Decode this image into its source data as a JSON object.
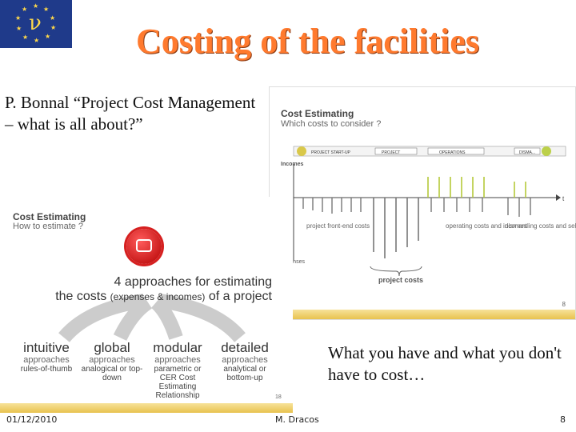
{
  "logo": {
    "letter": "ν"
  },
  "title": "Costing of the facilities",
  "citation": "P. Bonnal “Project Cost Management – what is all about?”",
  "slide_right": {
    "heading": "Cost Estimating",
    "subheading": "Which costs to consider ?",
    "phases": [
      "PROJECT START-UP",
      "PROJECT",
      "OPERATIONS",
      "DISMA..."
    ],
    "incomes_label": "Incomes",
    "expenses_label": "expenses",
    "front_end_label": "project front-end costs",
    "operating_label": "operating costs and incomes",
    "dismantling_label": "dismantling costs and selling-out",
    "project_costs_label": "project costs",
    "axis_end": "t",
    "page": "8"
  },
  "slide_left": {
    "heading": "Cost Estimating",
    "subheading": "How to estimate ?",
    "approaches_line1": "4 approaches for estimating",
    "approaches_line2a": "the costs",
    "approaches_line2b": "(expenses & incomes)",
    "approaches_line2c": "of a project",
    "columns": [
      {
        "main": "intuitive",
        "sub": "approaches",
        "detail": "rules-of-thumb"
      },
      {
        "main": "global",
        "sub": "approaches",
        "detail": "analogical or top-down"
      },
      {
        "main": "modular",
        "sub": "approaches",
        "detail": "parametric or CER Cost Estimating Relationship"
      },
      {
        "main": "detailed",
        "sub": "approaches",
        "detail": "analytical or bottom-up"
      }
    ],
    "page": "18"
  },
  "statement": "What you have and what you don't have to cost…",
  "footer": {
    "date": "01/12/2010",
    "author": "M. Dracos",
    "page": "8"
  },
  "colors": {
    "title": "#ff7a2e",
    "logo_bg": "#1f3a8a",
    "stars": "#ffd94a",
    "accent_bar": "#e8c24e",
    "positive_lines": "#b5c93a"
  }
}
